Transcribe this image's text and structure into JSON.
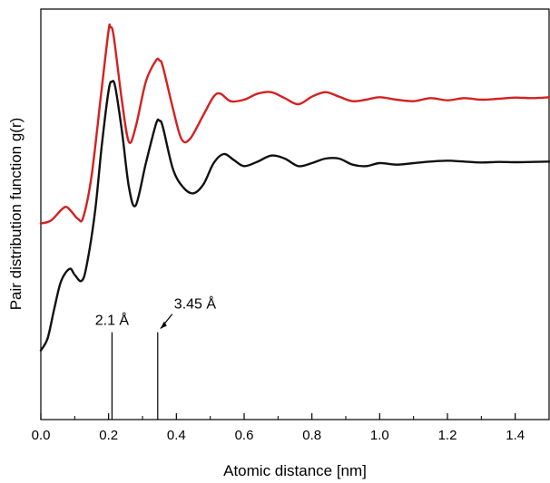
{
  "chart_data": {
    "type": "line",
    "title": "",
    "xlabel": "Atomic distance [nm]",
    "ylabel": "Pair distribution function g(r)",
    "xlim": [
      0.0,
      1.5
    ],
    "y_ticks_shown": false,
    "grid": false,
    "legend": "none",
    "x_ticks": [
      "0.0",
      "0.2",
      "0.4",
      "0.6",
      "0.8",
      "1.0",
      "1.2",
      "1.4"
    ],
    "x_tick_values": [
      0.0,
      0.2,
      0.4,
      0.6,
      0.8,
      1.0,
      1.2,
      1.4
    ],
    "series": [
      {
        "color": "#d42020",
        "x": [
          0.0,
          0.03,
          0.06,
          0.075,
          0.09,
          0.11,
          0.125,
          0.15,
          0.18,
          0.2,
          0.205,
          0.215,
          0.24,
          0.26,
          0.28,
          0.31,
          0.34,
          0.35,
          0.36,
          0.39,
          0.415,
          0.44,
          0.48,
          0.51,
          0.53,
          0.56,
          0.6,
          0.64,
          0.68,
          0.72,
          0.76,
          0.8,
          0.84,
          0.88,
          0.92,
          0.96,
          1.0,
          1.05,
          1.1,
          1.15,
          1.2,
          1.25,
          1.3,
          1.35,
          1.4,
          1.45,
          1.5
        ],
        "y": [
          0.52,
          0.53,
          0.565,
          0.575,
          0.56,
          0.535,
          0.54,
          0.68,
          0.97,
          1.16,
          1.17,
          1.14,
          0.92,
          0.79,
          0.84,
          0.99,
          1.06,
          1.06,
          1.04,
          0.9,
          0.8,
          0.8,
          0.88,
          0.94,
          0.95,
          0.925,
          0.93,
          0.95,
          0.955,
          0.935,
          0.915,
          0.94,
          0.955,
          0.94,
          0.925,
          0.93,
          0.938,
          0.93,
          0.925,
          0.935,
          0.928,
          0.935,
          0.93,
          0.933,
          0.937,
          0.935,
          0.938
        ]
      },
      {
        "color": "#111111",
        "x": [
          0.0,
          0.02,
          0.04,
          0.06,
          0.085,
          0.1,
          0.12,
          0.135,
          0.16,
          0.18,
          0.2,
          0.21,
          0.22,
          0.24,
          0.26,
          0.28,
          0.31,
          0.34,
          0.35,
          0.36,
          0.39,
          0.42,
          0.45,
          0.48,
          0.51,
          0.54,
          0.57,
          0.6,
          0.64,
          0.68,
          0.72,
          0.76,
          0.8,
          0.84,
          0.88,
          0.92,
          0.96,
          1.0,
          1.05,
          1.1,
          1.15,
          1.2,
          1.25,
          1.3,
          1.35,
          1.4,
          1.45,
          1.5
        ],
        "y": [
          0.1,
          0.14,
          0.24,
          0.33,
          0.37,
          0.35,
          0.33,
          0.38,
          0.56,
          0.78,
          0.96,
          0.99,
          0.97,
          0.82,
          0.64,
          0.58,
          0.72,
          0.85,
          0.86,
          0.84,
          0.7,
          0.64,
          0.62,
          0.65,
          0.72,
          0.75,
          0.73,
          0.71,
          0.725,
          0.745,
          0.735,
          0.71,
          0.72,
          0.735,
          0.735,
          0.715,
          0.71,
          0.72,
          0.715,
          0.72,
          0.725,
          0.728,
          0.725,
          0.722,
          0.724,
          0.723,
          0.724,
          0.725
        ]
      }
    ],
    "annotations": [
      {
        "text": "2.1 Å",
        "x": 0.21,
        "line_from_y": 0.0,
        "line_to_y": 0.16,
        "arrow": false
      },
      {
        "text": "3.45 Å",
        "x": 0.345,
        "line_from_y": 0.0,
        "line_to_y": 0.16,
        "arrow": true
      }
    ]
  }
}
